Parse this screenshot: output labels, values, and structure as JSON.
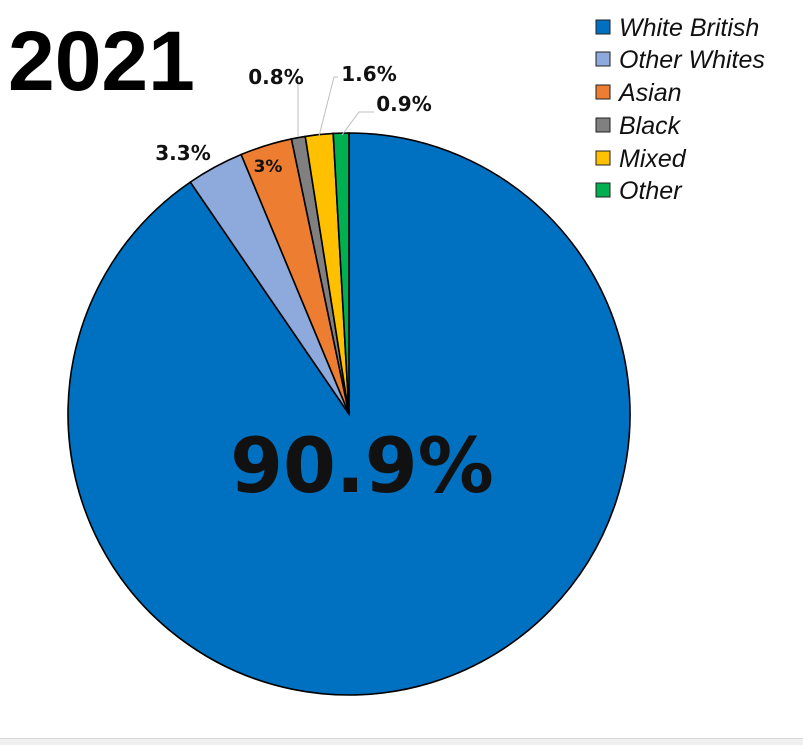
{
  "chart_data": {
    "type": "pie",
    "title": "2021",
    "start": "top",
    "direction": "clockwise",
    "legend_position": "top-right",
    "categories": [
      "White British",
      "Other Whites",
      "Asian",
      "Black",
      "Mixed",
      "Other"
    ],
    "values": [
      90.9,
      3.3,
      3.0,
      0.8,
      1.6,
      0.9
    ],
    "data_labels": [
      "90.9%",
      "3.3%",
      "3%",
      "0.8%",
      "1.6%",
      "0.9%"
    ],
    "colors": [
      "#0070C0",
      "#8EA9DB",
      "#ED7D31",
      "#808080",
      "#FFC000",
      "#00B050"
    ]
  }
}
